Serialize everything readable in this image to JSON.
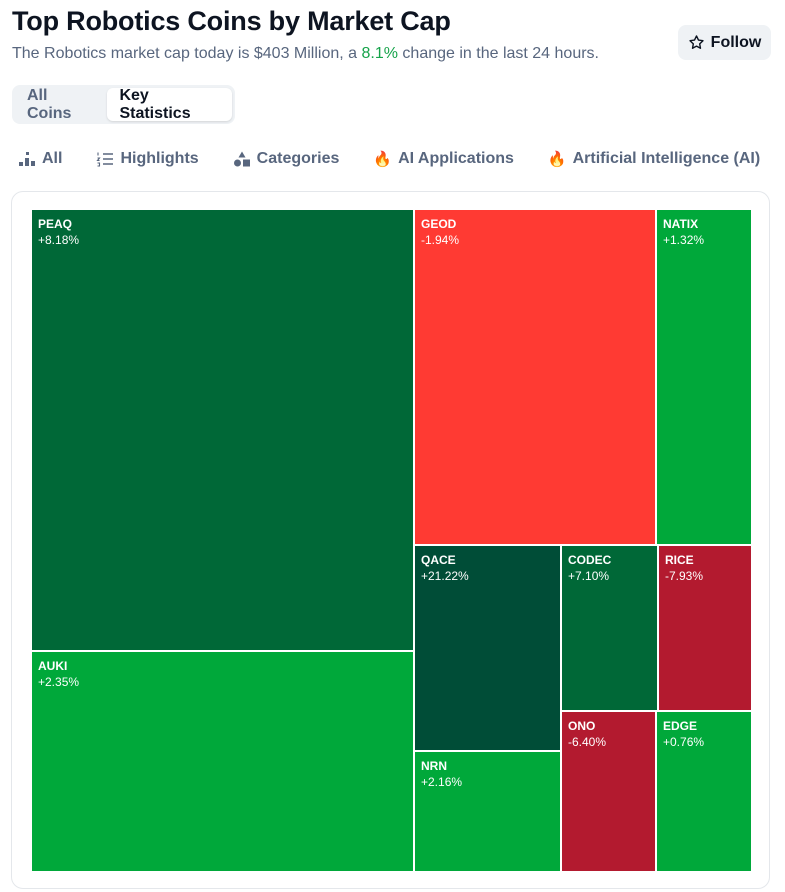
{
  "header": {
    "title": "Top Robotics Coins by Market Cap",
    "subtitle_before": "The Robotics market cap today is $403 Million, a ",
    "subtitle_pct": "8.1%",
    "subtitle_after": " change in the last 24 hours.",
    "follow_label": "Follow"
  },
  "toggle": {
    "all_coins": "All Coins",
    "key_statistics": "Key Statistics",
    "active": "Key Statistics"
  },
  "filters": {
    "all": "All",
    "highlights": "Highlights",
    "categories": "Categories",
    "ai_applications": "AI Applications",
    "artificial_intelligence": "Artificial Intelligence (AI)"
  },
  "colors": {
    "strong_up": "#006837",
    "up": "#00a83a",
    "very_strong_up": "#004d37",
    "down": "#ff3a33",
    "strong_down": "#b31a2f"
  },
  "treemap": {
    "tiles": [
      {
        "symbol": "PEAQ",
        "change": "+8.18%",
        "change_value": 8.18
      },
      {
        "symbol": "AUKI",
        "change": "+2.35%",
        "change_value": 2.35
      },
      {
        "symbol": "GEOD",
        "change": "-1.94%",
        "change_value": -1.94
      },
      {
        "symbol": "NATIX",
        "change": "+1.32%",
        "change_value": 1.32
      },
      {
        "symbol": "QACE",
        "change": "+21.22%",
        "change_value": 21.22
      },
      {
        "symbol": "CODEC",
        "change": "+7.10%",
        "change_value": 7.1
      },
      {
        "symbol": "RICE",
        "change": "-7.93%",
        "change_value": -7.93
      },
      {
        "symbol": "NRN",
        "change": "+2.16%",
        "change_value": 2.16
      },
      {
        "symbol": "ONO",
        "change": "-6.40%",
        "change_value": -6.4
      },
      {
        "symbol": "EDGE",
        "change": "+0.76%",
        "change_value": 0.76
      }
    ]
  }
}
